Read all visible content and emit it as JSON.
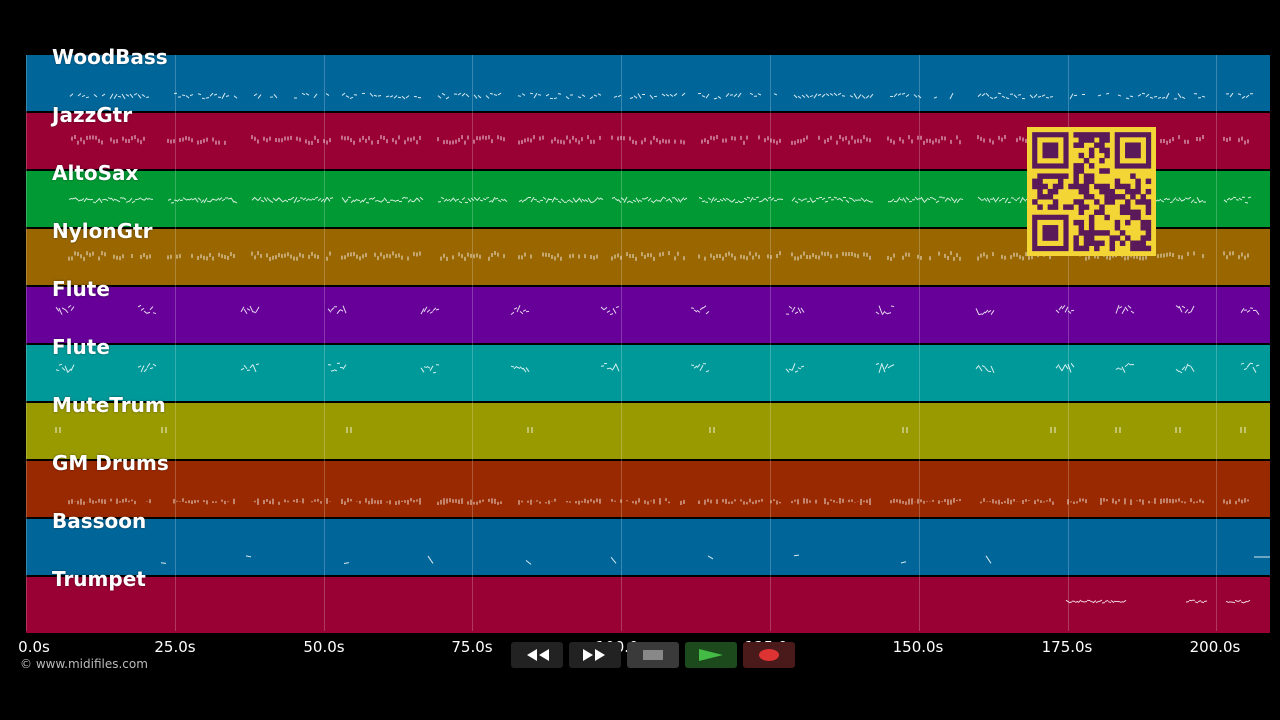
{
  "tracks": [
    {
      "label": "WoodBass",
      "color": "#006699"
    },
    {
      "label": "JazzGtr",
      "color": "#990033"
    },
    {
      "label": "AltoSax",
      "color": "#009933"
    },
    {
      "label": "NylonGtr",
      "color": "#996600"
    },
    {
      "label": "Flute",
      "color": "#660099"
    },
    {
      "label": "Flute",
      "color": "#009999"
    },
    {
      "label": "MuteTrum",
      "color": "#999900"
    },
    {
      "label": "GM Drums",
      "color": "#992900"
    },
    {
      "label": "Bassoon",
      "color": "#006699"
    },
    {
      "label": "Trumpet",
      "color": "#990033"
    }
  ],
  "timeline": {
    "ticks": [
      "0.0s",
      "25.0s",
      "50.0s",
      "75.0s",
      "100.0s",
      "125.0s",
      "150.0s",
      "175.0s",
      "200.0s"
    ],
    "tick_values": [
      0,
      25,
      50,
      75,
      100,
      125,
      150,
      175,
      200
    ],
    "max_seconds": 209
  },
  "footer": {
    "copyright": "© www.midifiles.com"
  },
  "transport": {
    "buttons": [
      {
        "name": "rewind-button",
        "icon": "rewind-icon"
      },
      {
        "name": "fast-forward-button",
        "icon": "fast-forward-icon"
      },
      {
        "name": "stop-button",
        "icon": "stop-icon"
      },
      {
        "name": "play-button",
        "icon": "play-icon"
      },
      {
        "name": "record-button",
        "icon": "record-icon"
      }
    ]
  },
  "qr_code": {
    "color": "#f3d536",
    "dark": "#5a1a5a"
  }
}
